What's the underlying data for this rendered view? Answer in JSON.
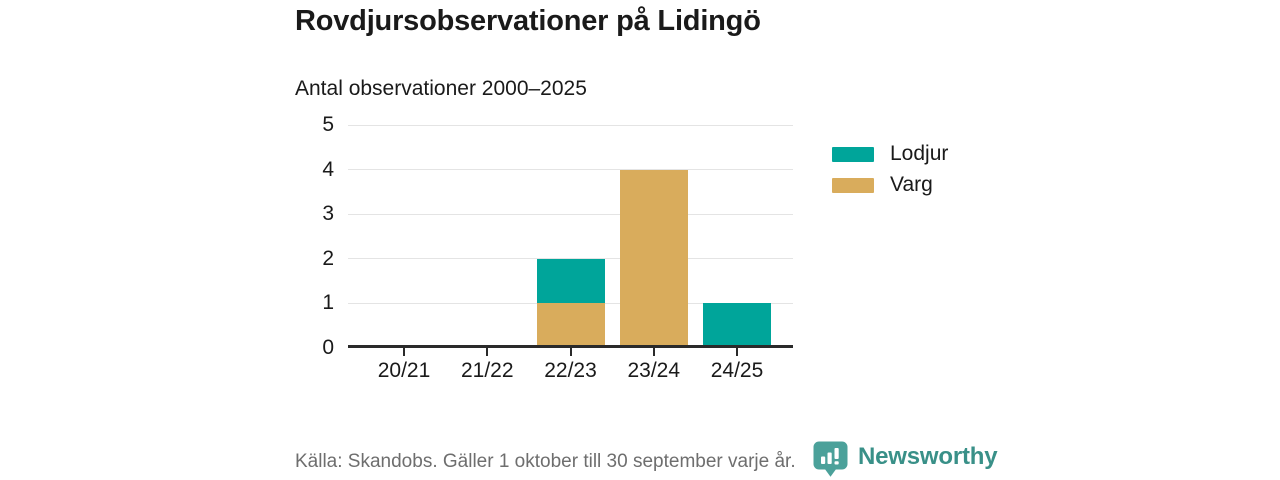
{
  "header": {
    "title": "Rovdjursobservationer på Lidingö",
    "subtitle": "Antal observationer 2000–2025"
  },
  "chart_data": {
    "type": "bar",
    "stacked": true,
    "title": "Rovdjursobservationer på Lidingö",
    "subtitle": "Antal observationer 2000–2025",
    "categories": [
      "20/21",
      "21/22",
      "22/23",
      "23/24",
      "24/25"
    ],
    "series": [
      {
        "name": "Lodjur",
        "color": "#00a59a",
        "values": [
          0,
          0,
          1,
          0,
          1
        ]
      },
      {
        "name": "Varg",
        "color": "#d9ac5c",
        "values": [
          0,
          0,
          1,
          4,
          0
        ]
      }
    ],
    "stack_bottom_to_top": [
      "Varg",
      "Lodjur"
    ],
    "ylim": [
      0,
      5
    ],
    "yticks": [
      0,
      1,
      2,
      3,
      4,
      5
    ],
    "grid": "horizontal",
    "legend_position": "right",
    "totals_by_category": [
      0,
      0,
      2,
      4,
      1
    ]
  },
  "footer": {
    "source": "Källa: Skandobs. Gäller 1 oktober till 30 september varje år.",
    "brand": "Newsworthy"
  },
  "icons": {
    "brand_mark": "speech-bubble-bar-chart-icon"
  },
  "colors": {
    "series_lodjur": "#00a59a",
    "series_varg": "#d9ac5c",
    "text": "#1a1a1a",
    "muted_text": "#6e6e6e",
    "axis": "#2a2a2a",
    "gridline": "#e4e4e4",
    "brand_teal": "#399088",
    "brand_mark_teal": "#4ba19a",
    "background": "#ffffff"
  }
}
